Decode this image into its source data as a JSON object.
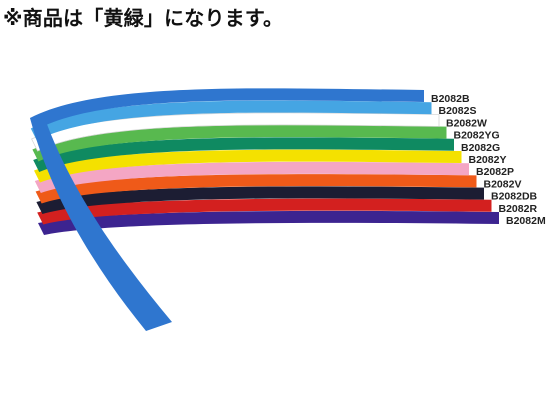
{
  "header": {
    "notice": "※商品は「黄緑」になります。"
  },
  "product": {
    "variants": [
      {
        "code": "B2082B",
        "color": "#2f76cf"
      },
      {
        "code": "B2082S",
        "color": "#45a5e3"
      },
      {
        "code": "B2082W",
        "color": "#ffffff",
        "outline": "#d6d6d6"
      },
      {
        "code": "B2082YG",
        "color": "#58b94f"
      },
      {
        "code": "B2082G",
        "color": "#0f8a61"
      },
      {
        "code": "B2082Y",
        "color": "#f4e100"
      },
      {
        "code": "B2082P",
        "color": "#f4a6c4"
      },
      {
        "code": "B2082V",
        "color": "#ef5a19"
      },
      {
        "code": "B2082DB",
        "color": "#1c1d33"
      },
      {
        "code": "B2082R",
        "color": "#d3201f"
      },
      {
        "code": "B2082M",
        "color": "#3c2490"
      }
    ]
  }
}
